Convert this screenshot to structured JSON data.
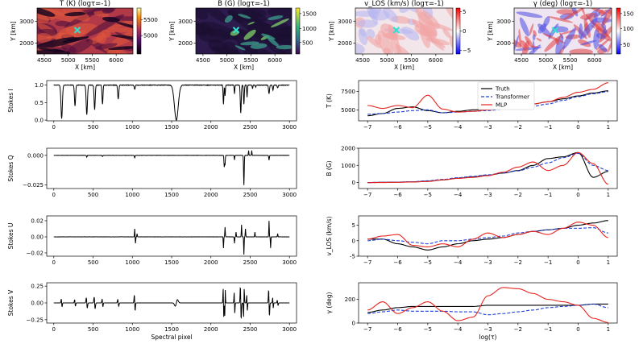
{
  "chart_data": [
    {
      "id": "map_T",
      "type": "heatmap",
      "title": "T (K) (logτ=-1)",
      "xlabel": "X [km]",
      "ylabel": "Y [km]",
      "xticks": [
        "4500",
        "5000",
        "5500",
        "6000"
      ],
      "yticks": [
        "2000",
        "3000"
      ],
      "colorbar_ticks": [
        "5000",
        "5500"
      ],
      "colormap": "inferno",
      "marker": "x"
    },
    {
      "id": "map_B",
      "type": "heatmap",
      "title": "B (G) (logτ=-1)",
      "xlabel": "X [km]",
      "ylabel": "Y [km]",
      "xticks": [
        "4500",
        "5000",
        "5500",
        "6000"
      ],
      "yticks": [
        "2000",
        "3000"
      ],
      "colorbar_ticks": [
        "500",
        "1000",
        "1500"
      ],
      "colormap": "viridis",
      "marker": "x"
    },
    {
      "id": "map_v",
      "type": "heatmap",
      "title": "v_LOS (km/s) (logτ=-1)",
      "xlabel": "X [km]",
      "ylabel": "Y [km]",
      "xticks": [
        "4500",
        "5000",
        "5500",
        "6000"
      ],
      "yticks": [
        "2000",
        "3000"
      ],
      "colorbar_ticks": [
        "5",
        "0",
        "−5"
      ],
      "colormap": "bwr",
      "marker": "x"
    },
    {
      "id": "map_g",
      "type": "heatmap",
      "title": "γ (deg) (logτ=-1)",
      "xlabel": "X [km]",
      "ylabel": "Y [km]",
      "xticks": [
        "4500",
        "5000",
        "5500",
        "6000"
      ],
      "yticks": [
        "2000",
        "3000"
      ],
      "colorbar_ticks": [
        "150",
        "100",
        "50"
      ],
      "colormap": "bwr",
      "marker": "x"
    },
    {
      "id": "stokes",
      "type": "line",
      "xlabel": "Spectral pixel",
      "xticks": [
        0,
        500,
        1000,
        1500,
        2000,
        2500,
        3000
      ],
      "xlim": [
        -90,
        3090
      ],
      "panels": [
        {
          "ylabel": "Stokes I",
          "ylim": [
            -0.02,
            1.13
          ],
          "yticks": [
            0,
            0.25,
            0.5,
            0.75,
            1
          ],
          "yticklabels": [
            "0.0",
            "0.5",
            "1.0"
          ],
          "yticks_show": [
            0,
            0.5,
            1
          ],
          "continuum": 1.0,
          "noise": 0.015,
          "lines": [
            [
              100,
              -0.95,
              9
            ],
            [
              270,
              -0.6,
              7
            ],
            [
              420,
              -0.85,
              8
            ],
            [
              520,
              -0.7,
              7
            ],
            [
              620,
              -0.55,
              6
            ],
            [
              820,
              -0.4,
              7
            ],
            [
              1030,
              -0.12,
              6
            ],
            [
              1560,
              -1.0,
              24
            ],
            [
              2160,
              -0.55,
              5
            ],
            [
              2180,
              -0.3,
              4
            ],
            [
              2300,
              -0.25,
              4
            ],
            [
              2380,
              -0.8,
              6
            ],
            [
              2420,
              -0.55,
              5
            ],
            [
              2460,
              -0.35,
              4
            ],
            [
              2530,
              -0.1,
              4
            ],
            [
              2570,
              -0.06,
              4
            ],
            [
              2740,
              -0.25,
              6
            ],
            [
              2790,
              -0.15,
              5
            ],
            [
              2850,
              -0.08,
              6
            ]
          ]
        },
        {
          "ylabel": "Stokes Q",
          "ylim": [
            -0.028,
            0.006
          ],
          "yticks_show": [
            0,
            -0.025
          ],
          "yticklabels": [
            "0.000",
            "−0.025"
          ],
          "continuum": 0.0,
          "noise": 0.0002,
          "lines": [
            [
              420,
              -0.0015,
              4
            ],
            [
              620,
              -0.001,
              4
            ],
            [
              1030,
              -0.002,
              4
            ],
            [
              2170,
              -0.01,
              4
            ],
            [
              2180,
              -0.008,
              3
            ],
            [
              2300,
              -0.004,
              3
            ],
            [
              2420,
              -0.025,
              4
            ],
            [
              2480,
              0.004,
              3
            ],
            [
              2520,
              0.004,
              3
            ],
            [
              2740,
              -0.004,
              4
            ]
          ]
        },
        {
          "ylabel": "Stokes U",
          "ylim": [
            -0.024,
            0.026
          ],
          "yticks_show": [
            0.02,
            0,
            -0.02
          ],
          "yticklabels": [
            "0.02",
            "0.00",
            "−0.02"
          ],
          "continuum": 0.0,
          "noise": 0.0002,
          "lines": [
            [
              1030,
              0.01,
              3
            ],
            [
              1040,
              -0.008,
              3
            ],
            [
              1060,
              0.004,
              3
            ],
            [
              2160,
              -0.014,
              3
            ],
            [
              2180,
              0.012,
              3
            ],
            [
              2300,
              -0.008,
              3
            ],
            [
              2320,
              0.006,
              3
            ],
            [
              2390,
              0.015,
              3
            ],
            [
              2420,
              -0.022,
              3
            ],
            [
              2440,
              0.01,
              3
            ],
            [
              2560,
              0.006,
              3
            ],
            [
              2740,
              0.02,
              3
            ],
            [
              2760,
              -0.014,
              3
            ],
            [
              2850,
              0.004,
              3
            ]
          ]
        },
        {
          "ylabel": "Stokes V",
          "ylim": [
            -0.3,
            0.3
          ],
          "yticks_show": [
            0.25,
            0,
            -0.25
          ],
          "yticklabels": [
            "0.25",
            "0.00",
            "−0.25"
          ],
          "continuum": 0.0,
          "noise": 0.001,
          "antisym": [
            [
              100,
              0.06,
              5
            ],
            [
              270,
              0.05,
              5
            ],
            [
              420,
              0.08,
              6
            ],
            [
              520,
              0.09,
              6
            ],
            [
              620,
              0.06,
              5
            ],
            [
              820,
              0.05,
              6
            ],
            [
              1030,
              0.12,
              5
            ],
            [
              1560,
              -0.05,
              14
            ],
            [
              2160,
              0.22,
              4
            ],
            [
              2180,
              -0.2,
              3
            ],
            [
              2300,
              0.16,
              4
            ],
            [
              2380,
              0.25,
              5
            ],
            [
              2420,
              -0.22,
              4
            ],
            [
              2460,
              0.12,
              4
            ],
            [
              2740,
              0.2,
              5
            ],
            [
              2790,
              0.08,
              4
            ],
            [
              2850,
              0.04,
              5
            ]
          ]
        }
      ]
    },
    {
      "id": "depth",
      "type": "line",
      "xlabel": "log(τ)",
      "xticks": [
        -7,
        -6,
        -5,
        -4,
        -3,
        -2,
        -1,
        0,
        1
      ],
      "xlim": [
        -7.3,
        1.3
      ],
      "legend": [
        "Truth",
        "Transformer",
        "MLP"
      ],
      "colors": {
        "Truth": "#000000",
        "Transformer": "#1f3fd6",
        "MLP": "#e8231f"
      },
      "x": [
        -7,
        -6.5,
        -6,
        -5.5,
        -5,
        -4.5,
        -4,
        -3.5,
        -3,
        -2.5,
        -2,
        -1.5,
        -1,
        -0.5,
        0,
        0.5,
        1
      ],
      "panels": [
        {
          "ylabel": "T (K)",
          "ylim": [
            3500,
            9000
          ],
          "yticks": [
            5000,
            7500
          ],
          "series": {
            "Truth": [
              4200,
              4500,
              5200,
              5400,
              4900,
              4600,
              4800,
              5000,
              5100,
              5300,
              5600,
              5800,
              6100,
              6500,
              6900,
              7300,
              7600
            ],
            "Transformer": [
              4400,
              4500,
              4700,
              4900,
              5000,
              4600,
              4700,
              4800,
              4900,
              5100,
              5300,
              5500,
              5800,
              6300,
              6800,
              7200,
              7500
            ],
            "MLP": [
              5600,
              5200,
              5600,
              5300,
              7000,
              5100,
              4700,
              4800,
              5000,
              5200,
              5500,
              5800,
              6100,
              6700,
              7400,
              7800,
              8700
            ]
          }
        },
        {
          "ylabel": "B (G)",
          "ylim": [
            -350,
            2000
          ],
          "yticks": [
            0,
            1000,
            2000
          ],
          "series": {
            "Truth": [
              0,
              10,
              20,
              40,
              80,
              150,
              250,
              330,
              420,
              550,
              700,
              1000,
              1400,
              1500,
              1750,
              300,
              650
            ],
            "Transformer": [
              0,
              10,
              25,
              50,
              100,
              180,
              280,
              360,
              450,
              560,
              680,
              900,
              1150,
              1450,
              1700,
              1000,
              700
            ],
            "MLP": [
              -10,
              0,
              10,
              30,
              60,
              160,
              240,
              300,
              400,
              600,
              900,
              1200,
              700,
              1000,
              1750,
              1100,
              -100
            ]
          }
        },
        {
          "ylabel": "v_LOS (km/s)",
          "ylim": [
            -5,
            8
          ],
          "yticks": [
            -5,
            0,
            5
          ],
          "series": {
            "Truth": [
              0.5,
              0.5,
              -1,
              -2,
              -3,
              -2,
              -1,
              0,
              0.5,
              1,
              2,
              3,
              3.5,
              4,
              5,
              5.7,
              6.5
            ],
            "Transformer": [
              0,
              0.5,
              0,
              -0.5,
              -1,
              0,
              0,
              0.5,
              1,
              1.5,
              2.5,
              3,
              3.5,
              4,
              4,
              4.2,
              2.5
            ],
            "MLP": [
              0.5,
              1.5,
              2,
              -1.5,
              -2,
              -1,
              -2,
              0.5,
              2.5,
              1,
              2,
              3,
              2,
              4,
              6,
              5,
              1
            ]
          }
        },
        {
          "ylabel": "γ (deg)",
          "ylim": [
            0,
            340
          ],
          "yticks": [
            0,
            200
          ],
          "series": {
            "Truth": [
              90,
              110,
              130,
              140,
              140,
              140,
              140,
              140,
              150,
              150,
              150,
              150,
              150,
              150,
              150,
              160,
              160
            ],
            "Transformer": [
              80,
              95,
              110,
              100,
              100,
              100,
              95,
              95,
              70,
              80,
              95,
              110,
              130,
              140,
              150,
              160,
              130
            ],
            "MLP": [
              110,
              180,
              80,
              130,
              180,
              100,
              20,
              50,
              230,
              300,
              290,
              250,
              200,
              180,
              150,
              40,
              5
            ]
          }
        }
      ]
    }
  ]
}
